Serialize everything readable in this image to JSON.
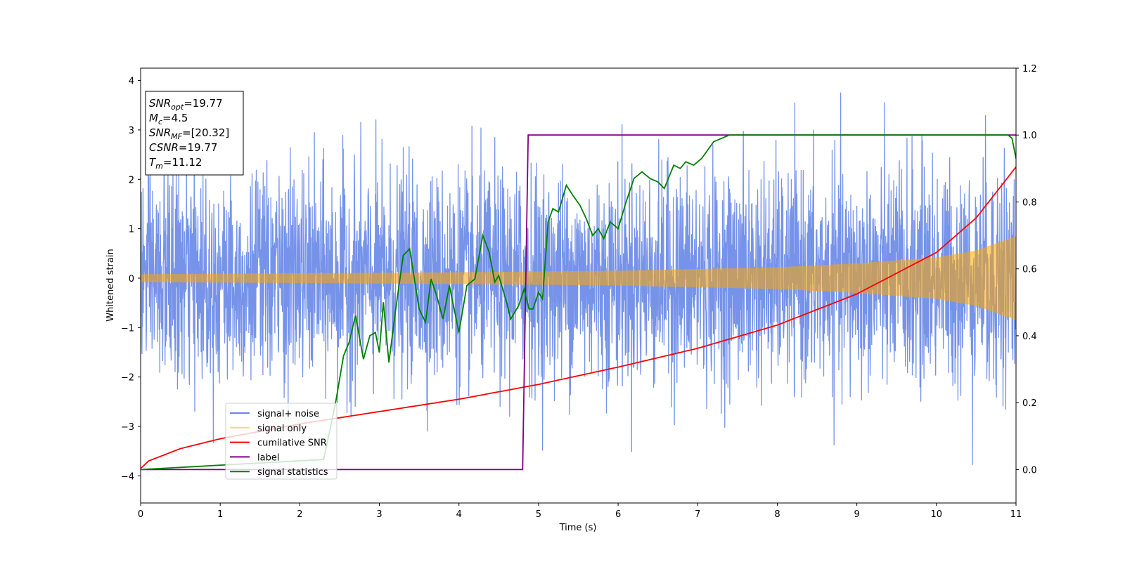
{
  "chart_data": {
    "type": "line",
    "xlabel": "Time (s)",
    "ylabel": "Whitened strain",
    "xlim": [
      0,
      11
    ],
    "ylim": [
      -4.55,
      4.25
    ],
    "y2lim": [
      -0.1,
      1.2
    ],
    "x_ticks": [
      0,
      1,
      2,
      3,
      4,
      5,
      6,
      7,
      8,
      9,
      10,
      11
    ],
    "y_ticks": [
      -4,
      -3,
      -2,
      -1,
      0,
      1,
      2,
      3,
      4
    ],
    "y2_ticks": [
      0.0,
      0.2,
      0.4,
      0.6,
      0.8,
      1.0,
      1.2
    ],
    "legend_position": "lower-left",
    "colors": {
      "signal_noise": "#4169e1",
      "signal_only": "#ffa500",
      "cumulative_snr": "#ff0000",
      "label": "#800080",
      "signal_statistics": "#008000"
    },
    "series": [
      {
        "name": "signal+ noise",
        "axis": "left",
        "style": "noise band, approx. ±2.4 with spikes to ±3.9"
      },
      {
        "name": "signal only",
        "axis": "left",
        "style": "chirp envelope",
        "envelope_x": [
          0,
          2,
          4,
          6,
          8,
          9,
          10,
          10.5,
          11
        ],
        "envelope_amp": [
          0.08,
          0.1,
          0.12,
          0.15,
          0.22,
          0.3,
          0.42,
          0.56,
          0.85
        ]
      },
      {
        "name": "cumilative SNR",
        "axis": "left",
        "x": [
          0,
          0.1,
          0.5,
          1,
          2,
          3,
          4,
          5,
          6,
          7,
          8,
          9,
          10,
          10.5,
          11
        ],
        "y": [
          -3.85,
          -3.7,
          -3.45,
          -3.25,
          -2.95,
          -2.7,
          -2.45,
          -2.15,
          -1.8,
          -1.42,
          -0.95,
          -0.32,
          0.52,
          1.22,
          2.25
        ]
      },
      {
        "name": "label",
        "axis": "right",
        "x": [
          0,
          4.8,
          4.87,
          11
        ],
        "y": [
          0.0,
          0.0,
          1.0,
          1.0
        ]
      },
      {
        "name": "signal statistics",
        "axis": "right",
        "x": [
          0,
          2.3,
          2.45,
          2.55,
          2.62,
          2.7,
          2.8,
          2.88,
          2.95,
          3.0,
          3.05,
          3.12,
          3.2,
          3.3,
          3.38,
          3.5,
          3.58,
          3.65,
          3.72,
          3.8,
          3.88,
          4.0,
          4.1,
          4.2,
          4.3,
          4.38,
          4.45,
          4.5,
          4.6,
          4.65,
          4.75,
          4.82,
          4.88,
          4.93,
          5.0,
          5.05,
          5.12,
          5.18,
          5.25,
          5.35,
          5.43,
          5.52,
          5.6,
          5.68,
          5.75,
          5.82,
          5.9,
          6.0,
          6.1,
          6.2,
          6.3,
          6.4,
          6.5,
          6.58,
          6.7,
          6.78,
          6.85,
          6.95,
          7.05,
          7.2,
          7.4,
          7.6,
          8.0,
          9.0,
          10.0,
          10.9,
          10.95,
          11.0
        ],
        "y": [
          0.0,
          0.03,
          0.2,
          0.34,
          0.38,
          0.46,
          0.33,
          0.4,
          0.41,
          0.35,
          0.5,
          0.32,
          0.47,
          0.64,
          0.66,
          0.48,
          0.44,
          0.57,
          0.52,
          0.45,
          0.55,
          0.41,
          0.55,
          0.57,
          0.7,
          0.65,
          0.56,
          0.58,
          0.5,
          0.45,
          0.49,
          0.54,
          0.48,
          0.48,
          0.53,
          0.51,
          0.74,
          0.78,
          0.77,
          0.85,
          0.82,
          0.79,
          0.75,
          0.7,
          0.72,
          0.69,
          0.74,
          0.72,
          0.8,
          0.87,
          0.89,
          0.87,
          0.86,
          0.84,
          0.91,
          0.9,
          0.92,
          0.91,
          0.93,
          0.98,
          1.0,
          1.0,
          1.0,
          1.0,
          1.0,
          1.0,
          0.99,
          0.93
        ]
      }
    ],
    "annotation": {
      "lines": [
        {
          "name": "SNR",
          "sub": "opt",
          "value": "=19.77"
        },
        {
          "name": "M",
          "sub": "c",
          "value": "=4.5"
        },
        {
          "name": "SNR",
          "sub": "MF",
          "value": "=[20.32]"
        },
        {
          "name": "CSNR",
          "sub": "",
          "value": "=19.77"
        },
        {
          "name": "T",
          "sub": "m",
          "value": "=11.12"
        }
      ]
    }
  }
}
